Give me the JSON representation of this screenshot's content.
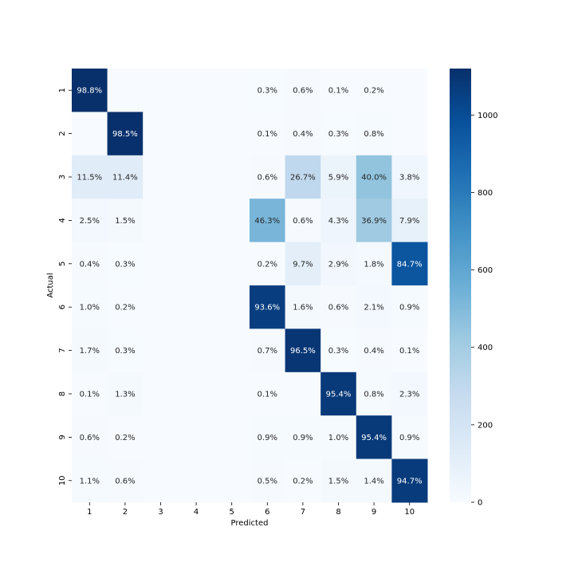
{
  "chart_data": {
    "type": "heatmap",
    "title": "",
    "xlabel": "Predicted",
    "ylabel": "Actual",
    "x_categories": [
      "1",
      "2",
      "3",
      "4",
      "5",
      "6",
      "7",
      "8",
      "9",
      "10"
    ],
    "y_categories": [
      "1",
      "2",
      "3",
      "4",
      "5",
      "6",
      "7",
      "8",
      "9",
      "10"
    ],
    "values": [
      [
        1120,
        0,
        0,
        0,
        0,
        3,
        7,
        1,
        2,
        0
      ],
      [
        0,
        1118,
        0,
        0,
        0,
        1,
        5,
        3,
        9,
        0
      ],
      [
        130,
        129,
        0,
        0,
        0,
        7,
        302,
        67,
        452,
        43
      ],
      [
        28,
        17,
        0,
        0,
        0,
        525,
        7,
        49,
        418,
        90
      ],
      [
        5,
        3,
        0,
        0,
        0,
        2,
        110,
        33,
        20,
        960
      ],
      [
        11,
        2,
        0,
        0,
        0,
        1060,
        18,
        7,
        24,
        10
      ],
      [
        19,
        3,
        0,
        0,
        0,
        8,
        1093,
        3,
        5,
        1
      ],
      [
        1,
        15,
        0,
        0,
        0,
        1,
        0,
        1081,
        9,
        26
      ],
      [
        7,
        2,
        0,
        0,
        0,
        10,
        10,
        11,
        1081,
        10
      ],
      [
        12,
        7,
        0,
        0,
        0,
        6,
        2,
        17,
        16,
        1073
      ]
    ],
    "annotations": [
      [
        "98.8%",
        "",
        "",
        "",
        "",
        "0.3%",
        "0.6%",
        "0.1%",
        "0.2%",
        ""
      ],
      [
        "",
        "98.5%",
        "",
        "",
        "",
        "0.1%",
        "0.4%",
        "0.3%",
        "0.8%",
        ""
      ],
      [
        "11.5%",
        "11.4%",
        "",
        "",
        "",
        "0.6%",
        "26.7%",
        "5.9%",
        "40.0%",
        "3.8%"
      ],
      [
        "2.5%",
        "1.5%",
        "",
        "",
        "",
        "46.3%",
        "0.6%",
        "4.3%",
        "36.9%",
        "7.9%"
      ],
      [
        "0.4%",
        "0.3%",
        "",
        "",
        "",
        "0.2%",
        "9.7%",
        "2.9%",
        "1.8%",
        "84.7%"
      ],
      [
        "1.0%",
        "0.2%",
        "",
        "",
        "",
        "93.6%",
        "1.6%",
        "0.6%",
        "2.1%",
        "0.9%"
      ],
      [
        "1.7%",
        "0.3%",
        "",
        "",
        "",
        "0.7%",
        "96.5%",
        "0.3%",
        "0.4%",
        "0.1%"
      ],
      [
        "0.1%",
        "1.3%",
        "",
        "",
        "",
        "0.1%",
        "",
        "95.4%",
        "0.8%",
        "2.3%"
      ],
      [
        "0.6%",
        "0.2%",
        "",
        "",
        "",
        "0.9%",
        "0.9%",
        "1.0%",
        "95.4%",
        "0.9%"
      ],
      [
        "1.1%",
        "0.6%",
        "",
        "",
        "",
        "0.5%",
        "0.2%",
        "1.5%",
        "1.4%",
        "94.7%"
      ]
    ],
    "colorbar": {
      "min": 0,
      "max": 1120,
      "ticks": [
        0,
        200,
        400,
        600,
        800,
        1000
      ],
      "colormap": "Blues"
    },
    "grid": false,
    "legend": "colorbar-right"
  }
}
